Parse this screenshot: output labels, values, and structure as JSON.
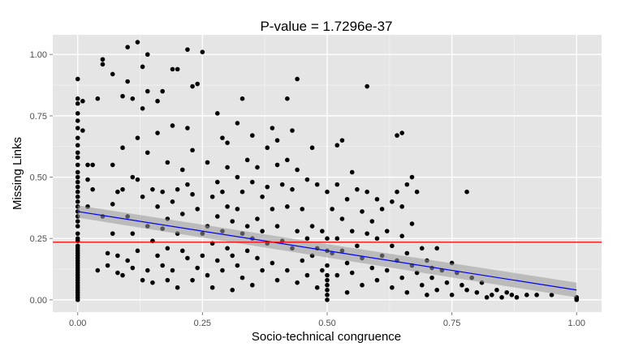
{
  "chart_data": {
    "type": "scatter",
    "title": "P-value = 1.7296e-37",
    "xlabel": "Socio-technical congruence",
    "ylabel": "Missing Links",
    "xlim": [
      -0.05,
      1.05
    ],
    "ylim": [
      -0.05,
      1.08
    ],
    "grid": true,
    "x_ticks": [
      {
        "value": 0.0,
        "label": "0.00"
      },
      {
        "value": 0.25,
        "label": "0.25"
      },
      {
        "value": 0.5,
        "label": "0.50"
      },
      {
        "value": 0.75,
        "label": "0.75"
      },
      {
        "value": 1.0,
        "label": "1.00"
      }
    ],
    "y_ticks": [
      {
        "value": 0.0,
        "label": "0.00"
      },
      {
        "value": 0.25,
        "label": "0.25"
      },
      {
        "value": 0.5,
        "label": "0.50"
      },
      {
        "value": 0.75,
        "label": "0.75"
      },
      {
        "value": 1.0,
        "label": "1.00"
      }
    ],
    "colors": {
      "panel": "#e5e5e5",
      "grid": "#ffffff",
      "points": "#000000",
      "fit_line": "#0000ff",
      "ci_band": "#999999",
      "hline": "#ff0000"
    },
    "reference_line": {
      "y": 0.235
    },
    "fit": {
      "x": [
        0.0,
        1.0
      ],
      "y": [
        0.36,
        0.04
      ],
      "ci_upper": [
        0.385,
        0.07
      ],
      "ci_lower": [
        0.335,
        0.01
      ]
    },
    "points": [
      [
        0.0,
        0.0
      ],
      [
        0.0,
        0.01
      ],
      [
        0.0,
        0.02
      ],
      [
        0.0,
        0.03
      ],
      [
        0.0,
        0.04
      ],
      [
        0.0,
        0.05
      ],
      [
        0.0,
        0.06
      ],
      [
        0.0,
        0.07
      ],
      [
        0.0,
        0.08
      ],
      [
        0.0,
        0.09
      ],
      [
        0.0,
        0.1
      ],
      [
        0.0,
        0.11
      ],
      [
        0.0,
        0.12
      ],
      [
        0.0,
        0.13
      ],
      [
        0.0,
        0.14
      ],
      [
        0.0,
        0.15
      ],
      [
        0.0,
        0.16
      ],
      [
        0.0,
        0.17
      ],
      [
        0.0,
        0.18
      ],
      [
        0.0,
        0.19
      ],
      [
        0.0,
        0.2
      ],
      [
        0.0,
        0.21
      ],
      [
        0.0,
        0.22
      ],
      [
        0.0,
        0.24
      ],
      [
        0.0,
        0.25
      ],
      [
        0.0,
        0.27
      ],
      [
        0.0,
        0.3
      ],
      [
        0.0,
        0.32
      ],
      [
        0.0,
        0.34
      ],
      [
        0.0,
        0.36
      ],
      [
        0.0,
        0.38
      ],
      [
        0.0,
        0.4
      ],
      [
        0.0,
        0.42
      ],
      [
        0.0,
        0.44
      ],
      [
        0.0,
        0.46
      ],
      [
        0.0,
        0.48
      ],
      [
        0.0,
        0.5
      ],
      [
        0.0,
        0.52
      ],
      [
        0.0,
        0.55
      ],
      [
        0.0,
        0.58
      ],
      [
        0.0,
        0.6
      ],
      [
        0.0,
        0.63
      ],
      [
        0.0,
        0.66
      ],
      [
        0.0,
        0.7
      ],
      [
        0.0,
        0.73
      ],
      [
        0.0,
        0.76
      ],
      [
        0.0,
        0.8
      ],
      [
        0.0,
        0.82
      ],
      [
        0.0,
        0.9
      ],
      [
        0.01,
        0.81
      ],
      [
        0.01,
        0.69
      ],
      [
        0.02,
        0.55
      ],
      [
        0.02,
        0.49
      ],
      [
        0.02,
        0.38
      ],
      [
        0.03,
        0.55
      ],
      [
        0.03,
        0.45
      ],
      [
        0.04,
        0.82
      ],
      [
        0.04,
        0.12
      ],
      [
        0.05,
        0.98
      ],
      [
        0.05,
        0.96
      ],
      [
        0.05,
        0.34
      ],
      [
        0.06,
        0.19
      ],
      [
        0.06,
        0.14
      ],
      [
        0.07,
        0.92
      ],
      [
        0.07,
        0.55
      ],
      [
        0.07,
        0.39
      ],
      [
        0.07,
        0.27
      ],
      [
        0.08,
        0.44
      ],
      [
        0.08,
        0.18
      ],
      [
        0.08,
        0.11
      ],
      [
        0.09,
        0.83
      ],
      [
        0.09,
        0.62
      ],
      [
        0.09,
        0.45
      ],
      [
        0.09,
        0.1
      ],
      [
        0.1,
        1.03
      ],
      [
        0.1,
        0.89
      ],
      [
        0.1,
        0.34
      ],
      [
        0.1,
        0.16
      ],
      [
        0.11,
        0.82
      ],
      [
        0.11,
        0.5
      ],
      [
        0.11,
        0.27
      ],
      [
        0.11,
        0.13
      ],
      [
        0.12,
        1.05
      ],
      [
        0.12,
        0.66
      ],
      [
        0.12,
        0.49
      ],
      [
        0.12,
        0.2
      ],
      [
        0.13,
        0.95
      ],
      [
        0.13,
        0.78
      ],
      [
        0.13,
        0.42
      ],
      [
        0.13,
        0.08
      ],
      [
        0.14,
        1.0
      ],
      [
        0.14,
        0.85
      ],
      [
        0.14,
        0.6
      ],
      [
        0.14,
        0.3
      ],
      [
        0.14,
        0.12
      ],
      [
        0.15,
        0.45
      ],
      [
        0.15,
        0.24
      ],
      [
        0.15,
        0.07
      ],
      [
        0.16,
        0.81
      ],
      [
        0.16,
        0.68
      ],
      [
        0.16,
        0.38
      ],
      [
        0.16,
        0.18
      ],
      [
        0.17,
        0.85
      ],
      [
        0.17,
        0.44
      ],
      [
        0.17,
        0.29
      ],
      [
        0.17,
        0.14
      ],
      [
        0.18,
        0.56
      ],
      [
        0.18,
        0.33
      ],
      [
        0.18,
        0.21
      ],
      [
        0.18,
        0.08
      ],
      [
        0.19,
        0.94
      ],
      [
        0.19,
        0.71
      ],
      [
        0.19,
        0.4
      ],
      [
        0.19,
        0.12
      ],
      [
        0.2,
        0.94
      ],
      [
        0.2,
        0.45
      ],
      [
        0.2,
        0.27
      ],
      [
        0.2,
        0.05
      ],
      [
        0.21,
        0.53
      ],
      [
        0.21,
        0.35
      ],
      [
        0.21,
        0.2
      ],
      [
        0.22,
        1.02
      ],
      [
        0.22,
        0.7
      ],
      [
        0.22,
        0.47
      ],
      [
        0.22,
        0.17
      ],
      [
        0.23,
        0.87
      ],
      [
        0.23,
        0.61
      ],
      [
        0.23,
        0.43
      ],
      [
        0.23,
        0.08
      ],
      [
        0.24,
        0.88
      ],
      [
        0.24,
        0.37
      ],
      [
        0.24,
        0.13
      ],
      [
        0.25,
        1.01
      ],
      [
        0.25,
        0.27
      ],
      [
        0.25,
        0.18
      ],
      [
        0.26,
        0.56
      ],
      [
        0.26,
        0.3
      ],
      [
        0.26,
        0.1
      ],
      [
        0.27,
        0.42
      ],
      [
        0.27,
        0.23
      ],
      [
        0.27,
        0.05
      ],
      [
        0.28,
        0.76
      ],
      [
        0.28,
        0.48
      ],
      [
        0.28,
        0.34
      ],
      [
        0.28,
        0.16
      ],
      [
        0.29,
        0.66
      ],
      [
        0.29,
        0.44
      ],
      [
        0.29,
        0.28
      ],
      [
        0.29,
        0.12
      ],
      [
        0.3,
        0.64
      ],
      [
        0.3,
        0.54
      ],
      [
        0.3,
        0.38
      ],
      [
        0.3,
        0.21
      ],
      [
        0.31,
        0.32
      ],
      [
        0.31,
        0.18
      ],
      [
        0.31,
        0.04
      ],
      [
        0.32,
        0.72
      ],
      [
        0.32,
        0.5
      ],
      [
        0.32,
        0.37
      ],
      [
        0.32,
        0.14
      ],
      [
        0.33,
        0.82
      ],
      [
        0.33,
        0.44
      ],
      [
        0.33,
        0.27
      ],
      [
        0.33,
        0.09
      ],
      [
        0.34,
        0.57
      ],
      [
        0.34,
        0.3
      ],
      [
        0.34,
        0.2
      ],
      [
        0.35,
        0.67
      ],
      [
        0.35,
        0.48
      ],
      [
        0.35,
        0.25
      ],
      [
        0.35,
        0.06
      ],
      [
        0.36,
        0.54
      ],
      [
        0.36,
        0.33
      ],
      [
        0.36,
        0.17
      ],
      [
        0.37,
        0.42
      ],
      [
        0.37,
        0.28
      ],
      [
        0.37,
        0.12
      ],
      [
        0.38,
        0.62
      ],
      [
        0.38,
        0.46
      ],
      [
        0.38,
        0.23
      ],
      [
        0.39,
        0.7
      ],
      [
        0.39,
        0.37
      ],
      [
        0.39,
        0.15
      ],
      [
        0.4,
        0.65
      ],
      [
        0.4,
        0.55
      ],
      [
        0.4,
        0.3
      ],
      [
        0.4,
        0.08
      ],
      [
        0.41,
        0.47
      ],
      [
        0.41,
        0.24
      ],
      [
        0.42,
        0.82
      ],
      [
        0.42,
        0.57
      ],
      [
        0.42,
        0.38
      ],
      [
        0.42,
        0.12
      ],
      [
        0.43,
        0.69
      ],
      [
        0.43,
        0.45
      ],
      [
        0.43,
        0.21
      ],
      [
        0.44,
        0.9
      ],
      [
        0.44,
        0.53
      ],
      [
        0.44,
        0.28
      ],
      [
        0.44,
        0.07
      ],
      [
        0.45,
        0.37
      ],
      [
        0.45,
        0.16
      ],
      [
        0.46,
        0.49
      ],
      [
        0.46,
        0.25
      ],
      [
        0.46,
        0.1
      ],
      [
        0.47,
        0.62
      ],
      [
        0.47,
        0.3
      ],
      [
        0.47,
        0.18
      ],
      [
        0.48,
        0.47
      ],
      [
        0.48,
        0.21
      ],
      [
        0.48,
        0.05
      ],
      [
        0.49,
        0.28
      ],
      [
        0.49,
        0.12
      ],
      [
        0.5,
        0.0
      ],
      [
        0.5,
        0.02
      ],
      [
        0.5,
        0.04
      ],
      [
        0.5,
        0.06
      ],
      [
        0.5,
        0.08
      ],
      [
        0.5,
        0.1
      ],
      [
        0.5,
        0.14
      ],
      [
        0.5,
        0.2
      ],
      [
        0.5,
        0.25
      ],
      [
        0.5,
        0.44
      ],
      [
        0.51,
        0.37
      ],
      [
        0.51,
        0.19
      ],
      [
        0.52,
        0.63
      ],
      [
        0.52,
        0.47
      ],
      [
        0.52,
        0.25
      ],
      [
        0.52,
        0.1
      ],
      [
        0.53,
        0.65
      ],
      [
        0.53,
        0.33
      ],
      [
        0.53,
        0.2
      ],
      [
        0.54,
        0.41
      ],
      [
        0.54,
        0.15
      ],
      [
        0.54,
        0.03
      ],
      [
        0.55,
        0.52
      ],
      [
        0.55,
        0.28
      ],
      [
        0.55,
        0.11
      ],
      [
        0.56,
        0.45
      ],
      [
        0.56,
        0.22
      ],
      [
        0.57,
        0.36
      ],
      [
        0.57,
        0.17
      ],
      [
        0.57,
        0.06
      ],
      [
        0.58,
        0.87
      ],
      [
        0.58,
        0.44
      ],
      [
        0.58,
        0.27
      ],
      [
        0.59,
        0.32
      ],
      [
        0.59,
        0.13
      ],
      [
        0.6,
        0.41
      ],
      [
        0.6,
        0.25
      ],
      [
        0.6,
        0.08
      ],
      [
        0.61,
        0.37
      ],
      [
        0.61,
        0.18
      ],
      [
        0.62,
        0.28
      ],
      [
        0.62,
        0.12
      ],
      [
        0.63,
        0.4
      ],
      [
        0.63,
        0.22
      ],
      [
        0.63,
        0.05
      ],
      [
        0.64,
        0.67
      ],
      [
        0.64,
        0.44
      ],
      [
        0.64,
        0.16
      ],
      [
        0.65,
        0.68
      ],
      [
        0.65,
        0.38
      ],
      [
        0.65,
        0.26
      ],
      [
        0.65,
        0.09
      ],
      [
        0.66,
        0.47
      ],
      [
        0.66,
        0.19
      ],
      [
        0.66,
        0.03
      ],
      [
        0.67,
        0.5
      ],
      [
        0.67,
        0.31
      ],
      [
        0.67,
        0.14
      ],
      [
        0.68,
        0.44
      ],
      [
        0.68,
        0.11
      ],
      [
        0.69,
        0.21
      ],
      [
        0.69,
        0.06
      ],
      [
        0.7,
        0.16
      ],
      [
        0.7,
        0.02
      ],
      [
        0.71,
        0.13
      ],
      [
        0.71,
        0.09
      ],
      [
        0.72,
        0.21
      ],
      [
        0.72,
        0.04
      ],
      [
        0.73,
        0.12
      ],
      [
        0.74,
        0.07
      ],
      [
        0.75,
        0.15
      ],
      [
        0.75,
        0.02
      ],
      [
        0.76,
        0.11
      ],
      [
        0.77,
        0.06
      ],
      [
        0.78,
        0.44
      ],
      [
        0.78,
        0.04
      ],
      [
        0.79,
        0.09
      ],
      [
        0.8,
        0.03
      ],
      [
        0.81,
        0.07
      ],
      [
        0.82,
        0.01
      ],
      [
        0.83,
        0.02
      ],
      [
        0.84,
        0.04
      ],
      [
        0.85,
        0.01
      ],
      [
        0.86,
        0.03
      ],
      [
        0.87,
        0.02
      ],
      [
        0.88,
        0.01
      ],
      [
        0.9,
        0.02
      ],
      [
        0.92,
        0.02
      ],
      [
        0.95,
        0.02
      ],
      [
        1.0,
        0.0
      ],
      [
        1.0,
        0.005
      ],
      [
        1.0,
        0.01
      ]
    ]
  }
}
